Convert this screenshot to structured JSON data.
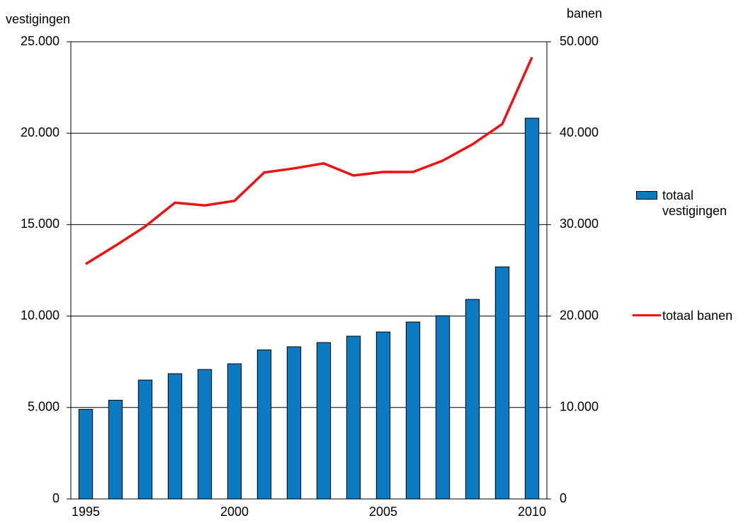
{
  "chart_data": {
    "type": "bar-line",
    "ylabel": "vestigingen",
    "y2label": "banen",
    "categories": [
      "1995",
      null,
      null,
      null,
      null,
      "2000",
      null,
      null,
      null,
      null,
      "2005",
      null,
      null,
      null,
      null,
      "2010"
    ],
    "series": [
      {
        "name": "totaal vestigingen",
        "type": "bar",
        "color": "#0a7bc2",
        "axis": "y",
        "values": [
          4900,
          5400,
          6500,
          6850,
          7080,
          7390,
          8150,
          8320,
          8550,
          8900,
          9130,
          9675,
          10020,
          10910,
          12690,
          20820
        ]
      },
      {
        "name": "totaal banen",
        "type": "line",
        "color": "#ee1111",
        "axis": "y2",
        "values": [
          25700,
          27700,
          29800,
          32400,
          32100,
          32600,
          35700,
          36150,
          36700,
          35370,
          35760,
          35760,
          37000,
          38780,
          41000,
          48300
        ]
      }
    ],
    "ylim": [
      0,
      25000
    ],
    "yticks": [
      0,
      {
        "value": 5000,
        "label": "5.000"
      },
      {
        "value": 10000,
        "label": "10.000"
      },
      {
        "value": 15000,
        "label": "15.000"
      },
      {
        "value": 20000,
        "label": "20.000"
      },
      {
        "value": 25000,
        "label": "25.000"
      }
    ],
    "y2lim": [
      0,
      50000
    ],
    "y2ticks": [
      0,
      {
        "value": 10000,
        "label": "10.000"
      },
      {
        "value": 20000,
        "label": "20.000"
      },
      {
        "value": 30000,
        "label": "30.000"
      },
      {
        "value": 40000,
        "label": "40.000"
      },
      {
        "value": 50000,
        "label": "50.000"
      }
    ],
    "grid": true,
    "legend": "right"
  }
}
